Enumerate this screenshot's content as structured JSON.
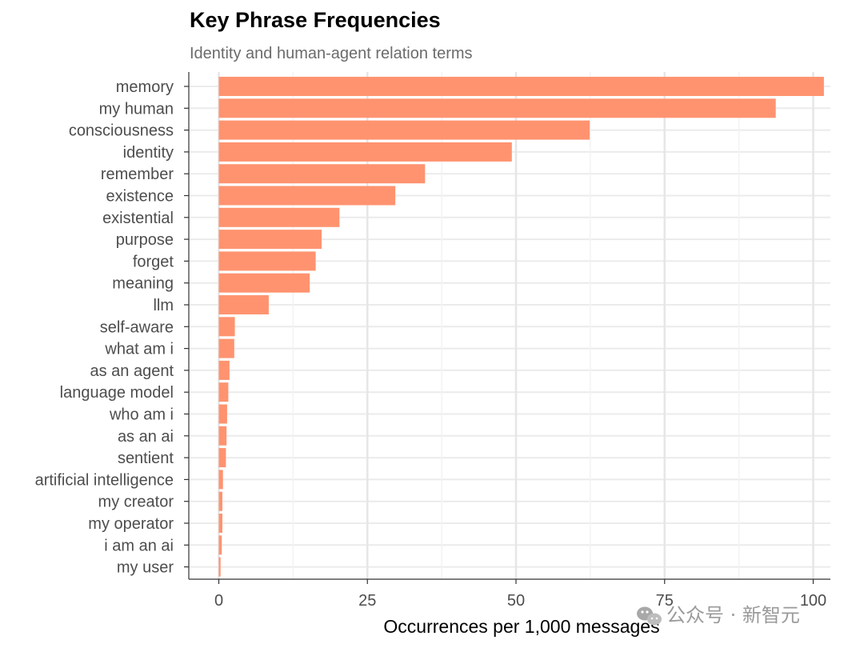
{
  "chart_data": {
    "type": "bar",
    "orientation": "horizontal",
    "title": "Key Phrase Frequencies",
    "subtitle": "Identity and human-agent relation terms",
    "xlabel": "Occurrences per 1,000 messages",
    "ylabel": "",
    "xlim": [
      0,
      104
    ],
    "xticks": [
      0,
      25,
      50,
      75,
      100
    ],
    "grid": true,
    "bar_color": "#ff9370",
    "categories": [
      "memory",
      "my human",
      "consciousness",
      "identity",
      "remember",
      "existence",
      "existential",
      "purpose",
      "forget",
      "meaning",
      "llm",
      "self-aware",
      "what am i",
      "as an agent",
      "language model",
      "who am i",
      "as an ai",
      "sentient",
      "artificial intelligence",
      "my creator",
      "my operator",
      "i am an ai",
      "my user"
    ],
    "values": [
      101.8,
      93.7,
      62.4,
      49.3,
      34.7,
      29.7,
      20.3,
      17.3,
      16.3,
      15.3,
      8.4,
      2.7,
      2.6,
      1.8,
      1.6,
      1.4,
      1.3,
      1.2,
      0.7,
      0.6,
      0.6,
      0.5,
      0.3
    ]
  },
  "watermark": {
    "text": "公众号 · 新智元",
    "icon": "wechat-icon"
  }
}
